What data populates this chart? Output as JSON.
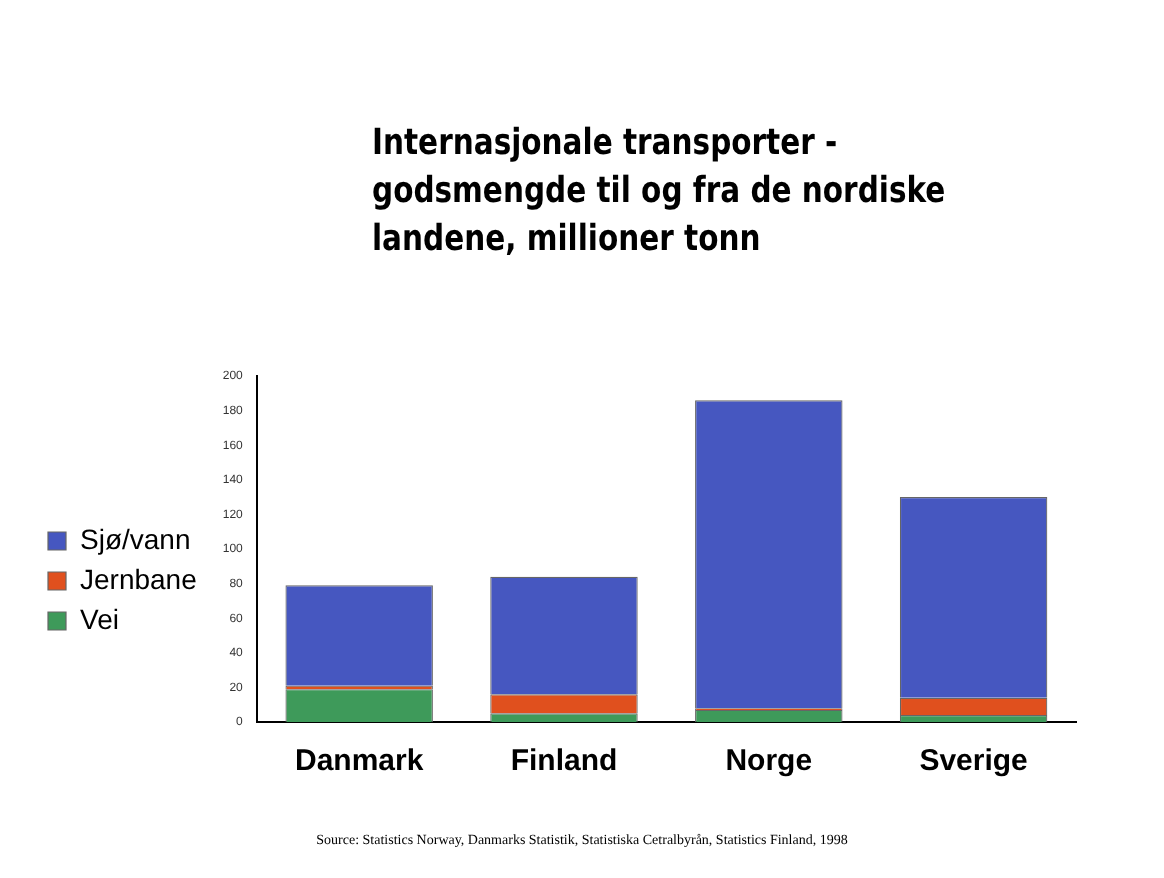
{
  "chart_data": {
    "type": "bar",
    "title": "Internasjonale transporter - godsmengde til og fra de nordiske landene, millioner tonn",
    "categories": [
      "Danmark",
      "Finland",
      "Norge",
      "Sverige"
    ],
    "series": [
      {
        "name": "Vei",
        "color": "#3e9a5a",
        "values": [
          19,
          5,
          7,
          4
        ]
      },
      {
        "name": "Jernbane",
        "color": "#e0501e",
        "values": [
          2,
          11,
          1,
          10
        ]
      },
      {
        "name": "Sjø/vann",
        "color": "#4657c0",
        "values": [
          58,
          68,
          178,
          116
        ]
      }
    ],
    "stacked": true,
    "ylim": [
      0,
      200
    ],
    "yticks": [
      0,
      20,
      40,
      60,
      80,
      100,
      120,
      140,
      160,
      180,
      200
    ],
    "grid": false,
    "legend": "left",
    "annotations": [
      "Source: Statistics Norway, Danmarks Statistik, Statistiska Cetralbyrån, Statistics Finland, 1998"
    ]
  }
}
